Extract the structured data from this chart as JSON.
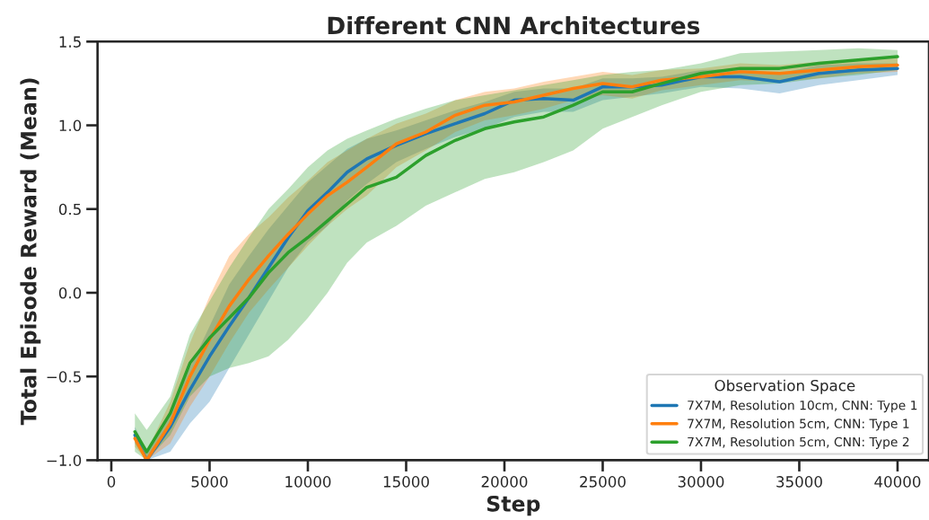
{
  "chart_data": {
    "type": "line",
    "title": "Different CNN Architectures",
    "xlabel": "Step",
    "ylabel": "Total Episode Reward (Mean)",
    "legend_title": "Observation Space",
    "x": [
      1200,
      1800,
      3000,
      4000,
      5000,
      6000,
      7000,
      8000,
      9000,
      10000,
      11000,
      12000,
      13000,
      14500,
      16000,
      17500,
      19000,
      20500,
      22000,
      23500,
      25000,
      26500,
      28000,
      30000,
      32000,
      34000,
      36000,
      38000,
      40000
    ],
    "series": [
      {
        "name": "7X7M, Resolution 10cm, CNN: Type 1",
        "color": "#1f77b4",
        "values": [
          -0.85,
          -1.0,
          -0.8,
          -0.58,
          -0.38,
          -0.2,
          -0.03,
          0.15,
          0.33,
          0.49,
          0.6,
          0.72,
          0.8,
          0.88,
          0.95,
          1.01,
          1.07,
          1.15,
          1.16,
          1.15,
          1.23,
          1.23,
          1.24,
          1.29,
          1.29,
          1.26,
          1.31,
          1.33,
          1.34
        ],
        "lower": [
          -0.9,
          -1.0,
          -0.95,
          -0.78,
          -0.65,
          -0.45,
          -0.25,
          -0.05,
          0.15,
          0.3,
          0.4,
          0.55,
          0.65,
          0.78,
          0.86,
          0.93,
          0.98,
          1.05,
          1.08,
          1.08,
          1.15,
          1.17,
          1.19,
          1.23,
          1.22,
          1.19,
          1.24,
          1.27,
          1.3
        ],
        "upper": [
          -0.8,
          -0.95,
          -0.72,
          -0.45,
          -0.2,
          0.05,
          0.22,
          0.38,
          0.52,
          0.66,
          0.76,
          0.86,
          0.92,
          0.97,
          1.03,
          1.09,
          1.14,
          1.2,
          1.22,
          1.22,
          1.28,
          1.28,
          1.29,
          1.33,
          1.34,
          1.31,
          1.36,
          1.37,
          1.37
        ]
      },
      {
        "name": "7X7M, Resolution 5cm, CNN: Type 1",
        "color": "#ff7f0e",
        "values": [
          -0.87,
          -1.0,
          -0.78,
          -0.5,
          -0.28,
          -0.08,
          0.08,
          0.22,
          0.35,
          0.47,
          0.58,
          0.66,
          0.75,
          0.89,
          0.96,
          1.06,
          1.12,
          1.14,
          1.18,
          1.22,
          1.25,
          1.23,
          1.27,
          1.29,
          1.32,
          1.31,
          1.33,
          1.35,
          1.36
        ],
        "lower": [
          -0.92,
          -1.0,
          -0.9,
          -0.68,
          -0.5,
          -0.3,
          -0.12,
          0.02,
          0.15,
          0.28,
          0.4,
          0.5,
          0.58,
          0.75,
          0.85,
          0.96,
          1.03,
          1.06,
          1.1,
          1.15,
          1.18,
          1.16,
          1.21,
          1.24,
          1.27,
          1.26,
          1.28,
          1.31,
          1.32
        ],
        "upper": [
          -0.82,
          -0.95,
          -0.65,
          -0.3,
          -0.02,
          0.22,
          0.35,
          0.45,
          0.57,
          0.67,
          0.78,
          0.85,
          0.92,
          1.01,
          1.07,
          1.15,
          1.2,
          1.22,
          1.26,
          1.29,
          1.32,
          1.3,
          1.33,
          1.34,
          1.37,
          1.36,
          1.38,
          1.39,
          1.4
        ]
      },
      {
        "name": "7X7M, Resolution 5cm, CNN: Type 2",
        "color": "#2ca02c",
        "values": [
          -0.83,
          -0.95,
          -0.72,
          -0.42,
          -0.27,
          -0.15,
          -0.03,
          0.12,
          0.24,
          0.33,
          0.43,
          0.53,
          0.63,
          0.69,
          0.82,
          0.91,
          0.98,
          1.02,
          1.05,
          1.12,
          1.2,
          1.2,
          1.25,
          1.31,
          1.34,
          1.34,
          1.37,
          1.39,
          1.41
        ],
        "lower": [
          -0.95,
          -1.0,
          -0.85,
          -0.62,
          -0.5,
          -0.45,
          -0.42,
          -0.38,
          -0.28,
          -0.15,
          0.0,
          0.18,
          0.3,
          0.4,
          0.52,
          0.6,
          0.68,
          0.72,
          0.78,
          0.85,
          0.98,
          1.05,
          1.12,
          1.2,
          1.24,
          1.25,
          1.28,
          1.3,
          1.33
        ],
        "upper": [
          -0.72,
          -0.82,
          -0.62,
          -0.25,
          -0.05,
          0.15,
          0.33,
          0.5,
          0.62,
          0.75,
          0.85,
          0.92,
          0.97,
          1.04,
          1.1,
          1.15,
          1.18,
          1.21,
          1.24,
          1.27,
          1.3,
          1.32,
          1.33,
          1.37,
          1.43,
          1.44,
          1.45,
          1.46,
          1.45
        ]
      }
    ],
    "xlim": [
      -700,
      41600
    ],
    "ylim": [
      -1.0,
      1.5
    ],
    "xticks": [
      0,
      5000,
      10000,
      15000,
      20000,
      25000,
      30000,
      35000,
      40000
    ],
    "yticks": [
      {
        "value": -1.0,
        "label": "−1.0"
      },
      {
        "value": -0.5,
        "label": "−0.5"
      },
      {
        "value": 0.0,
        "label": "0.0"
      },
      {
        "value": 0.5,
        "label": "0.5"
      },
      {
        "value": 1.0,
        "label": "1.0"
      },
      {
        "value": 1.5,
        "label": "1.5"
      }
    ],
    "legend": "bottom right",
    "grid": false
  }
}
